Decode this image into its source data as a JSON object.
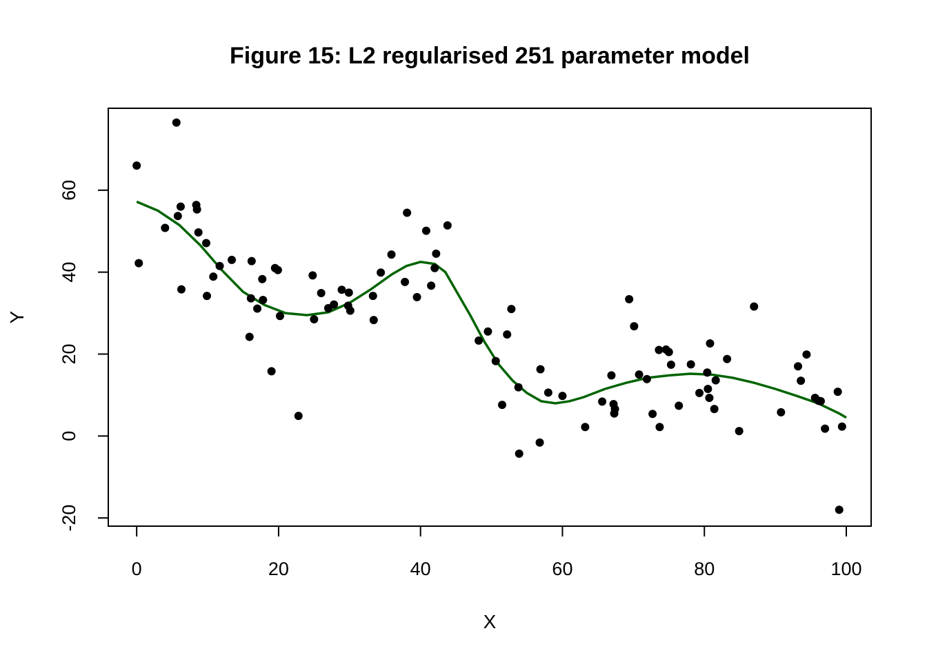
{
  "chart_data": {
    "type": "scatter",
    "title": "Figure 15: L2 regularised 251 parameter model",
    "xlabel": "X",
    "ylabel": "Y",
    "xlim": [
      -4,
      103.5
    ],
    "ylim": [
      -22,
      80
    ],
    "x_ticks": [
      0,
      20,
      40,
      60,
      80,
      100
    ],
    "y_ticks": [
      -20,
      0,
      20,
      40,
      60
    ],
    "grid": false,
    "point_color": "#000000",
    "line_color": "#006400",
    "series": [
      {
        "type": "scatter",
        "x": [
          0.0,
          0.3,
          4.0,
          5.6,
          5.8,
          6.2,
          6.3,
          8.4,
          8.5,
          8.7,
          9.8,
          9.9,
          10.8,
          11.7,
          13.4,
          15.9,
          16.1,
          16.2,
          17.0,
          17.7,
          17.8,
          19.0,
          19.5,
          19.9,
          20.2,
          22.8,
          24.8,
          25.0,
          26.0,
          27.0,
          27.8,
          28.9,
          29.8,
          29.9,
          30.1,
          33.3,
          33.4,
          34.4,
          35.9,
          37.8,
          38.1,
          39.5,
          40.8,
          41.5,
          42.0,
          42.2,
          43.8,
          48.2,
          49.5,
          50.6,
          51.5,
          52.2,
          52.8,
          53.8,
          53.9,
          56.8,
          56.9,
          58.0,
          60.0,
          63.2,
          65.6,
          66.9,
          67.2,
          67.3,
          67.4,
          69.4,
          70.1,
          70.8,
          71.9,
          72.7,
          73.6,
          73.7,
          74.6,
          75.0,
          75.3,
          76.4,
          78.1,
          79.3,
          80.4,
          80.5,
          80.7,
          80.8,
          81.4,
          81.6,
          83.2,
          84.9,
          87.0,
          90.8,
          93.2,
          93.6,
          94.4,
          95.6,
          96.1,
          96.4,
          97.0,
          98.8,
          99.0,
          99.4
        ],
        "y": [
          66,
          42.2,
          50.8,
          76.5,
          53.7,
          56.0,
          35.8,
          56.4,
          55.3,
          49.7,
          47.1,
          34.2,
          38.9,
          41.5,
          43.0,
          24.2,
          33.6,
          42.7,
          31.1,
          38.3,
          33.2,
          15.8,
          41.0,
          40.5,
          29.3,
          4.9,
          39.2,
          28.5,
          34.9,
          31.2,
          32.1,
          35.7,
          31.8,
          35.0,
          30.6,
          34.2,
          28.3,
          39.9,
          44.3,
          37.6,
          54.5,
          33.9,
          50.1,
          36.7,
          41.0,
          44.5,
          51.4,
          23.3,
          25.5,
          18.3,
          7.6,
          24.8,
          31.0,
          11.9,
          -4.3,
          -1.6,
          16.3,
          10.6,
          9.8,
          2.2,
          8.4,
          14.8,
          7.8,
          5.5,
          6.6,
          33.4,
          26.8,
          15.0,
          13.9,
          5.4,
          21.0,
          2.2,
          21.1,
          20.5,
          17.4,
          7.4,
          17.5,
          10.5,
          15.5,
          11.5,
          9.3,
          22.6,
          6.6,
          13.6,
          18.8,
          1.2,
          31.6,
          5.8,
          17.0,
          13.5,
          19.9,
          9.3,
          8.6,
          8.5,
          1.8,
          10.8,
          -18,
          2.3
        ]
      },
      {
        "type": "line",
        "x": [
          0,
          3,
          6,
          9,
          12,
          15,
          18,
          21,
          24,
          27,
          30,
          33,
          36,
          38,
          40,
          42,
          43.5,
          45,
          47,
          49,
          51,
          53,
          55,
          57,
          59,
          61,
          63,
          66,
          69,
          72,
          75,
          78,
          81,
          84,
          87,
          90,
          93,
          96,
          99,
          100
        ],
        "y": [
          57.2,
          55.0,
          51.5,
          46.5,
          40.5,
          35.2,
          32.0,
          30.0,
          29.5,
          30.2,
          32.5,
          35.8,
          39.5,
          41.5,
          42.5,
          42.0,
          40.0,
          35.5,
          29.5,
          23.0,
          17.5,
          13.5,
          10.5,
          8.5,
          8.0,
          8.5,
          9.5,
          11.5,
          13.0,
          14.2,
          14.8,
          15.2,
          15.0,
          14.2,
          13.0,
          11.5,
          9.8,
          8.0,
          5.5,
          4.5
        ]
      }
    ]
  }
}
